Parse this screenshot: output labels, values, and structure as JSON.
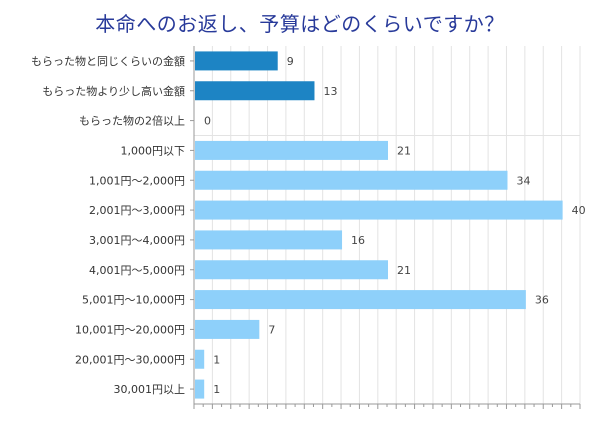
{
  "chart_data": {
    "type": "bar",
    "orientation": "horizontal",
    "title": "本命へのお返し、予算はどのくらいですか？",
    "xlabel": "",
    "ylabel": "",
    "xlim": [
      0,
      42
    ],
    "grid": true,
    "legend": "none",
    "categories": [
      "もらった物と同じくらいの金額",
      "もらった物より少し高い金額",
      "もらった物の2倍以上",
      "1,000円以下",
      "1,001円～2,000円",
      "2,001円～3,000円",
      "3,001円～4,000円",
      "4,001円～5,000円",
      "5,001円～10,000円",
      "10,001円～20,000円",
      "20,001円～30,000円",
      "30,001円以上"
    ],
    "values": [
      9,
      13,
      0,
      21,
      34,
      40,
      16,
      21,
      36,
      7,
      1,
      1
    ],
    "bar_colors": [
      "#1d84c4",
      "#1d84c4",
      "#1d84c4",
      "#8ed0fa",
      "#8ed0fa",
      "#8ed0fa",
      "#8ed0fa",
      "#8ed0fa",
      "#8ed0fa",
      "#8ed0fa",
      "#8ed0fa",
      "#8ed0fa"
    ],
    "colors": {
      "title": "#283a9a",
      "grid": "#e3e3e3",
      "axis": "#999999"
    }
  }
}
